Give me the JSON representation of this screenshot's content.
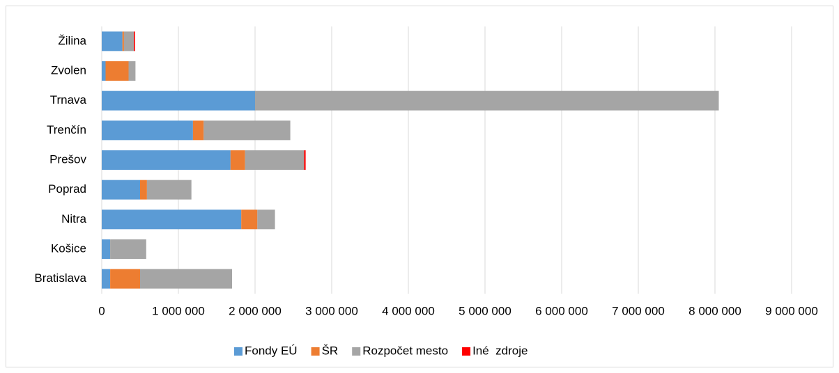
{
  "chart_data": {
    "type": "stacked_barh",
    "categories": [
      "Žilina",
      "Zvolen",
      "Trnava",
      "Trenčín",
      "Prešov",
      "Poprad",
      "Nitra",
      "Košice",
      "Bratislava"
    ],
    "series": [
      {
        "name": "Fondy EÚ",
        "color": "#5b9bd5",
        "values": [
          270000,
          50000,
          2000000,
          1190000,
          1680000,
          500000,
          1820000,
          110000,
          110000
        ]
      },
      {
        "name": "ŠR",
        "color": "#ed7d31",
        "values": [
          20000,
          300000,
          0,
          140000,
          190000,
          90000,
          210000,
          0,
          390000
        ]
      },
      {
        "name": "Rozpočet mesto",
        "color": "#a5a5a5",
        "values": [
          130000,
          90000,
          6050000,
          1130000,
          770000,
          580000,
          230000,
          470000,
          1200000
        ]
      },
      {
        "name": "Iné  zdroje",
        "color": "#ff0000",
        "values": [
          15000,
          0,
          0,
          0,
          20000,
          0,
          0,
          0,
          0
        ]
      }
    ],
    "xlim": [
      0,
      9000000
    ],
    "xticks": [
      0,
      {
        "value": 1000000,
        "label": "1 000 000"
      },
      {
        "value": 2000000,
        "label": "2 000 000"
      },
      {
        "value": 3000000,
        "label": "3 000 000"
      },
      {
        "value": 4000000,
        "label": "4 000 000"
      },
      {
        "value": 5000000,
        "label": "5 000 000"
      },
      {
        "value": 6000000,
        "label": "6 000 000"
      },
      {
        "value": 7000000,
        "label": "7 000 000"
      },
      {
        "value": 8000000,
        "label": "8 000 000"
      },
      {
        "value": 9000000,
        "label": "9 000 000"
      }
    ],
    "grid": true,
    "legend": "bottom"
  }
}
